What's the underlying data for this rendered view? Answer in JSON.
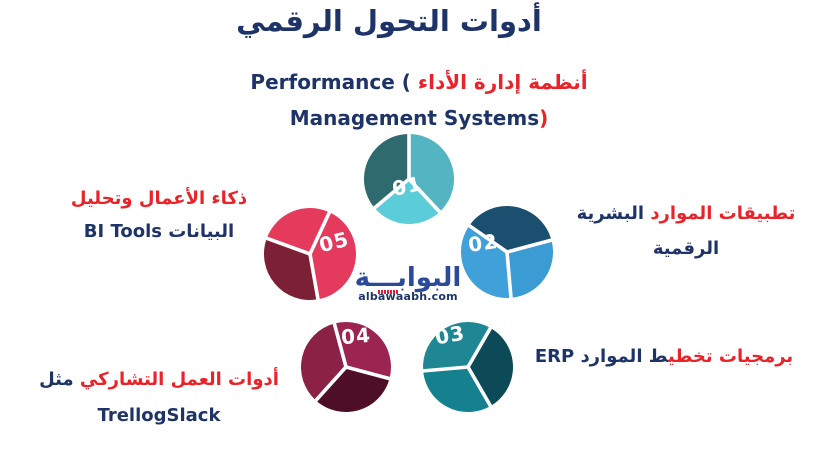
{
  "title": {
    "text": "أدوات التحول الرقمي"
  },
  "subtitle": {
    "line1": {
      "english": "Performance",
      "paren": "(",
      "arabic": "أنظمة إدارة الأداء"
    },
    "line2": {
      "english": "Management Systems",
      "paren": ")"
    }
  },
  "labels": {
    "bi_tools": {
      "line1": "ذكاء الأعمال وتحليل",
      "line2": "البيانات BI Tools"
    },
    "hr_apps": {
      "line1_red": "تطبيقات الموارد",
      "line1_navy": "البشرية",
      "line2": "الرقمية"
    },
    "erp": {
      "red_part": "برمجيات تخطي",
      "navy_part": "ط الموارد ERP"
    },
    "collab": {
      "line1_red": "أدوات العمل التشاركي",
      "line1_navy": "مثل",
      "line2": "TrellogSlack"
    }
  },
  "logo": {
    "name": "البوابـــة",
    "domain": "albawaabh.com"
  },
  "wheel": {
    "items": [
      {
        "id": "01",
        "number": "01",
        "colors": [
          "#53b5c2",
          "#5bcdd8",
          "#2e6a6e"
        ]
      },
      {
        "id": "02",
        "number": "02",
        "colors": [
          "#3b9bd3",
          "#40a0da",
          "#1a4f70"
        ]
      },
      {
        "id": "03",
        "number": "03",
        "colors": [
          "#0b4a56",
          "#15818f",
          "#1f8694"
        ]
      },
      {
        "id": "04",
        "number": "04",
        "colors": [
          "#4e0e26",
          "#8c2146",
          "#9c2450"
        ]
      },
      {
        "id": "05",
        "number": "05",
        "colors": [
          "#e43a5e",
          "#7c2036",
          "#e63a5c"
        ]
      }
    ]
  },
  "theme": {
    "navy": "#1e3468",
    "red": "#e92329",
    "logo_blue": "#2b4a9b",
    "gap_white": "#ffffff"
  }
}
